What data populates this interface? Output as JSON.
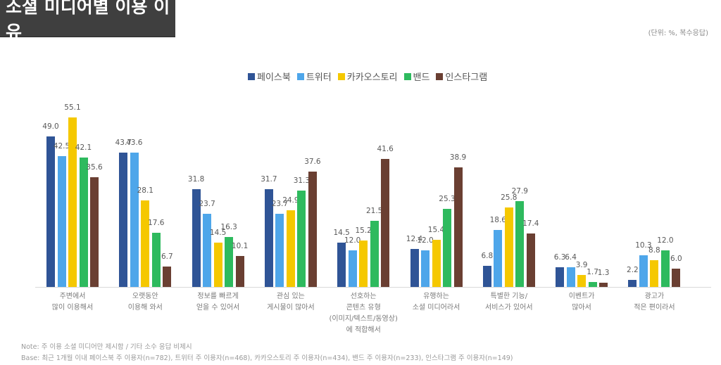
{
  "header": {
    "title": "소셜 미디어별 이용 이유",
    "unit": "(단위: %, 복수응답)"
  },
  "legend": [
    {
      "label": "페이스북",
      "color": "#2f5496"
    },
    {
      "label": "트위터",
      "color": "#4ea6ea"
    },
    {
      "label": "카카오스토리",
      "color": "#f5c800"
    },
    {
      "label": "밴드",
      "color": "#2eba5e"
    },
    {
      "label": "인스타그램",
      "color": "#6a3f32"
    }
  ],
  "notes": {
    "note": "Note: 주 이용 소셜 미디어만 제시함 / 기타 소수 응답 비제시",
    "base": "Base: 최근 1개월 이내 페이스북 주 이용자(n=782), 트위터 주 이용자(n=468), 카카오스토리 주 이용자(n=434), 밴드 주 이용자(n=233), 인스타그램 주 이용자(n=149)"
  },
  "chart_data": {
    "type": "bar",
    "title": "소셜 미디어별 이용 이유",
    "subtitle": "(단위: %, 복수응답)",
    "xlabel": "",
    "ylabel": "%",
    "ylim": [
      0,
      60
    ],
    "grid": false,
    "legend_position": "top",
    "categories": [
      "주변에서\n많이 이용해서",
      "오랫동안\n이용해 와서",
      "정보를 빠르게\n얻을 수 있어서",
      "관심 있는\n게시물이 많아서",
      "선호하는\n콘텐츠 유형\n(이미지/텍스트/동영상)\n에 적합해서",
      "유행하는\n소셜 미디어라서",
      "특별한 기능/\n서비스가 있어서",
      "이벤트가\n많아서",
      "광고가\n적은 편이라서"
    ],
    "series": [
      {
        "name": "페이스북",
        "color": "#2f5496",
        "values": [
          49.0,
          43.7,
          31.8,
          31.7,
          14.5,
          12.4,
          6.8,
          6.3,
          2.2
        ]
      },
      {
        "name": "트위터",
        "color": "#4ea6ea",
        "values": [
          42.5,
          43.6,
          23.7,
          23.7,
          12.0,
          12.0,
          18.6,
          6.4,
          10.3
        ]
      },
      {
        "name": "카카오스토리",
        "color": "#f5c800",
        "values": [
          55.1,
          28.1,
          14.5,
          24.9,
          15.2,
          15.4,
          25.8,
          3.9,
          8.8
        ]
      },
      {
        "name": "밴드",
        "color": "#2eba5e",
        "values": [
          42.1,
          17.6,
          16.3,
          31.3,
          21.5,
          25.3,
          27.9,
          1.7,
          12.0
        ]
      },
      {
        "name": "인스타그램",
        "color": "#6a3f32",
        "values": [
          35.6,
          6.7,
          10.1,
          37.6,
          41.6,
          38.9,
          17.4,
          1.3,
          6.0
        ]
      }
    ]
  }
}
